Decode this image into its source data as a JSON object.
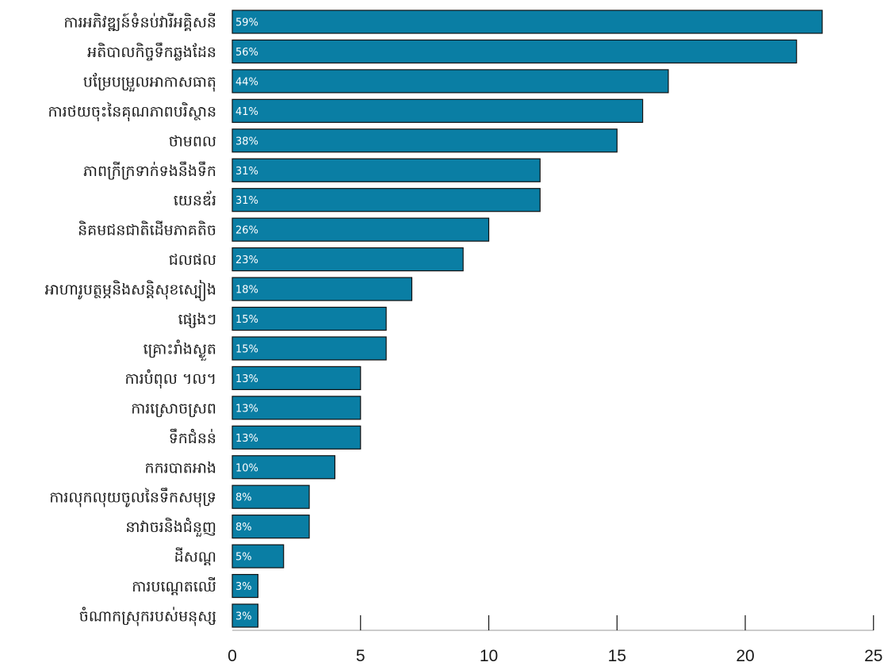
{
  "colors": {
    "bar": "#0a7ea4",
    "bar_stroke": "#111111",
    "axis": "#999999",
    "tick": "#111111"
  },
  "chart_data": {
    "type": "bar",
    "orientation": "horizontal",
    "title": "",
    "xlabel": "",
    "ylabel": "",
    "xlim": [
      0,
      25
    ],
    "x_ticks": [
      0,
      5,
      10,
      15,
      20,
      25
    ],
    "grid": false,
    "legend": "none",
    "categories": [
      "ការអភិវឌ្ឍន៍ទំនប់វារីអគ្គិសនី",
      "អតិបាលកិច្ចទឹកឆ្លងដែន",
      "បម្រែបម្រួលអាកាសធាតុ",
      "ការថយចុះនៃគុណភាពបរិស្ថាន",
      "ថាមពល",
      "ភាពក្រីក្រទាក់ទងនឹងទឹក",
      "យេនឌ័រ",
      "និគមជនជាតិដើមភាគតិច",
      "ជលផល",
      "អាហារូបត្ថម្ភនិងសន្តិសុខស្បៀង",
      "ផ្សេងៗ",
      "គ្រោះរាំងស្ងួត",
      "ការបំពុល ។ល។",
      "ការស្រោចស្រព",
      "ទឹកជំនន់",
      "កករបាតអាង",
      "ការលុកលុយចូលនៃទឹកសមុទ្រ",
      "នាវាចរនិងជំនួញ",
      "ដីសណ្ដ",
      "ការបណ្ដេតឈើ",
      "ចំណាកស្រុករបស់មនុស្ស"
    ],
    "values": [
      23,
      22,
      17,
      16,
      15,
      12,
      12,
      10,
      9,
      7,
      6,
      6,
      5,
      5,
      5,
      4,
      3,
      3,
      2,
      1,
      1
    ],
    "data_labels": [
      "59%",
      "56%",
      "44%",
      "41%",
      "38%",
      "31%",
      "31%",
      "26%",
      "23%",
      "18%",
      "15%",
      "15%",
      "13%",
      "13%",
      "13%",
      "10%",
      "8%",
      "8%",
      "5%",
      "3%",
      "3%"
    ]
  }
}
